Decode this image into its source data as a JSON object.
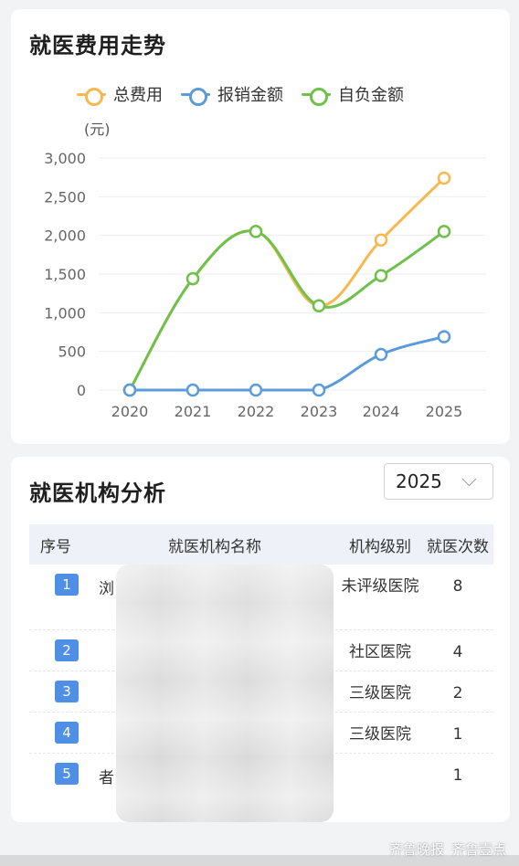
{
  "chart_section": {
    "title": "就医费用走势",
    "unit": "(元)"
  },
  "chart_data": {
    "type": "line",
    "title": "就医费用走势",
    "ylabel": "(元)",
    "x": [
      "2020",
      "2021",
      "2022",
      "2023",
      "2024",
      "2025"
    ],
    "ylim": [
      0,
      3000
    ],
    "yticks": [
      "0",
      "500",
      "1,000",
      "1,500",
      "2,000",
      "2,500",
      "3,000"
    ],
    "legend_position": "top",
    "grid": true,
    "series": [
      {
        "name": "总费用",
        "color": "#f7b851",
        "values": [
          0,
          1440,
          2050,
          1090,
          1940,
          2740
        ]
      },
      {
        "name": "报销金额",
        "color": "#5b9bd9",
        "values": [
          0,
          0,
          0,
          0,
          460,
          690
        ]
      },
      {
        "name": "自负金额",
        "color": "#6ec24b",
        "values": [
          0,
          1440,
          2050,
          1090,
          1480,
          2050
        ]
      }
    ]
  },
  "institutions": {
    "title": "就医机构分析",
    "year": "2025",
    "headers": {
      "idx": "序号",
      "name": "就医机构名称",
      "level": "机构级别",
      "count": "就医次数"
    },
    "rows": [
      {
        "idx": "1",
        "name_fragment": "浏",
        "level": "未评级医院",
        "count": "8"
      },
      {
        "idx": "2",
        "name_fragment": "",
        "level": "社区医院",
        "count": "4"
      },
      {
        "idx": "3",
        "name_fragment": "",
        "level": "三级医院",
        "count": "2"
      },
      {
        "idx": "4",
        "name_fragment": "",
        "level": "三级医院",
        "count": "1"
      },
      {
        "idx": "5",
        "name_fragment": "者",
        "level": "",
        "count": "1"
      }
    ]
  },
  "watermark": {
    "left": "齐鲁晚报",
    "right": "齐鲁壹点"
  }
}
